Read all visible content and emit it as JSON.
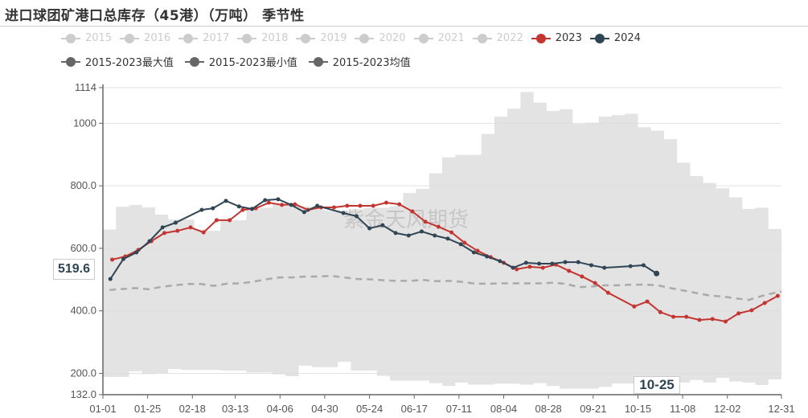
{
  "title": "进口球团矿港口总库存（45港）（万吨） 季节性",
  "colors": {
    "inactive": "#cccccc",
    "y2023": "#c23531",
    "y2024": "#2f4554",
    "stat": "#666666",
    "band": "#e3e3e3",
    "mean": "#aaaaaa"
  },
  "legend": {
    "row1": [
      {
        "label": "2015",
        "active": false
      },
      {
        "label": "2016",
        "active": false
      },
      {
        "label": "2017",
        "active": false
      },
      {
        "label": "2018",
        "active": false
      },
      {
        "label": "2019",
        "active": false
      },
      {
        "label": "2020",
        "active": false
      },
      {
        "label": "2021",
        "active": false
      },
      {
        "label": "2022",
        "active": false
      },
      {
        "label": "2023",
        "active": true
      },
      {
        "label": "2024",
        "active": true
      }
    ],
    "row2": [
      {
        "label": "2015-2023最大值",
        "active": true
      },
      {
        "label": "2015-2023最小值",
        "active": true
      },
      {
        "label": "2015-2023均值",
        "active": true
      }
    ]
  },
  "watermark": "紫金天风期货",
  "axis_pointer": {
    "y_value": "519.6",
    "x_value": "10-25"
  },
  "chart_data": {
    "type": "line",
    "title": "进口球团矿港口总库存（45港）（万吨） 季节性",
    "ylim": [
      132,
      1114
    ],
    "y_ticks": [
      "132.0",
      "200.0",
      "400.0",
      "600.0",
      "800.0",
      "1000",
      "1114"
    ],
    "x_ticks": [
      "01-01",
      "01-25",
      "02-18",
      "03-13",
      "04-06",
      "04-30",
      "05-24",
      "06-17",
      "07-11",
      "08-04",
      "08-28",
      "09-21",
      "10-15",
      "11-08",
      "12-02",
      "12-31"
    ],
    "grid": true,
    "legend_position": "top",
    "series": [
      {
        "name": "2023",
        "points": [
          [
            "01-06",
            564
          ],
          [
            "01-13",
            574
          ],
          [
            "01-20",
            595
          ],
          [
            "01-27",
            623
          ],
          [
            "02-03",
            649
          ],
          [
            "02-10",
            656
          ],
          [
            "02-17",
            667
          ],
          [
            "02-24",
            651
          ],
          [
            "03-03",
            690
          ],
          [
            "03-10",
            690
          ],
          [
            "03-17",
            723
          ],
          [
            "03-24",
            728
          ],
          [
            "03-31",
            746
          ],
          [
            "04-07",
            739
          ],
          [
            "04-14",
            741
          ],
          [
            "04-21",
            723
          ],
          [
            "04-28",
            731
          ],
          [
            "05-05",
            731
          ],
          [
            "05-12",
            736
          ],
          [
            "05-19",
            736
          ],
          [
            "05-26",
            736
          ],
          [
            "06-02",
            746
          ],
          [
            "06-09",
            741
          ],
          [
            "06-16",
            718
          ],
          [
            "06-23",
            685
          ],
          [
            "06-30",
            669
          ],
          [
            "07-07",
            651
          ],
          [
            "07-14",
            618
          ],
          [
            "07-21",
            592
          ],
          [
            "07-28",
            572
          ],
          [
            "08-04",
            554
          ],
          [
            "08-11",
            533
          ],
          [
            "08-18",
            541
          ],
          [
            "08-25",
            538
          ],
          [
            "09-01",
            548
          ],
          [
            "09-08",
            528
          ],
          [
            "09-15",
            510
          ],
          [
            "09-22",
            489
          ],
          [
            "09-29",
            458
          ],
          [
            "10-13",
            414
          ],
          [
            "10-20",
            430
          ],
          [
            "10-27",
            396
          ],
          [
            "11-03",
            381
          ],
          [
            "11-10",
            381
          ],
          [
            "11-17",
            371
          ],
          [
            "11-24",
            374
          ],
          [
            "12-01",
            366
          ],
          [
            "12-08",
            392
          ],
          [
            "12-15",
            402
          ],
          [
            "12-22",
            425
          ],
          [
            "12-29",
            448
          ]
        ]
      },
      {
        "name": "2024",
        "points": [
          [
            "01-05",
            502
          ],
          [
            "01-12",
            566
          ],
          [
            "01-19",
            587
          ],
          [
            "01-26",
            623
          ],
          [
            "02-02",
            667
          ],
          [
            "02-09",
            682
          ],
          [
            "02-23",
            723
          ],
          [
            "03-01",
            728
          ],
          [
            "03-08",
            752
          ],
          [
            "03-15",
            734
          ],
          [
            "03-22",
            726
          ],
          [
            "03-29",
            754
          ],
          [
            "04-05",
            757
          ],
          [
            "04-12",
            739
          ],
          [
            "04-19",
            716
          ],
          [
            "04-26",
            736
          ],
          [
            "05-10",
            713
          ],
          [
            "05-17",
            703
          ],
          [
            "05-24",
            664
          ],
          [
            "05-31",
            674
          ],
          [
            "06-07",
            649
          ],
          [
            "06-14",
            641
          ],
          [
            "06-21",
            654
          ],
          [
            "06-28",
            641
          ],
          [
            "07-05",
            631
          ],
          [
            "07-12",
            613
          ],
          [
            "07-19",
            587
          ],
          [
            "07-26",
            574
          ],
          [
            "08-02",
            559
          ],
          [
            "08-09",
            538
          ],
          [
            "08-16",
            554
          ],
          [
            "08-23",
            551
          ],
          [
            "08-30",
            551
          ],
          [
            "09-06",
            556
          ],
          [
            "09-13",
            556
          ],
          [
            "09-20",
            546
          ],
          [
            "09-27",
            538
          ],
          [
            "10-11",
            543
          ],
          [
            "10-18",
            546
          ],
          [
            "10-25",
            519.6
          ]
        ]
      },
      {
        "name": "2015-2023最大值",
        "dates": [
          "01-01",
          "01-08",
          "01-15",
          "01-22",
          "01-29",
          "02-05",
          "02-12",
          "02-19",
          "02-26",
          "03-05",
          "03-12",
          "03-19",
          "03-26",
          "04-02",
          "04-09",
          "04-16",
          "04-23",
          "04-30",
          "05-07",
          "05-14",
          "05-21",
          "05-28",
          "06-04",
          "06-11",
          "06-18",
          "06-25",
          "07-02",
          "07-09",
          "07-16",
          "07-23",
          "07-30",
          "08-06",
          "08-13",
          "08-20",
          "08-27",
          "09-03",
          "09-10",
          "09-17",
          "09-24",
          "10-01",
          "10-08",
          "10-15",
          "10-22",
          "10-29",
          "11-05",
          "11-12",
          "11-19",
          "11-26",
          "12-03",
          "12-10",
          "12-17",
          "12-24",
          "12-31"
        ],
        "values": [
          660,
          733,
          739,
          731,
          708,
          692,
          692,
          660,
          656,
          690,
          690,
          726,
          730,
          743,
          743,
          734,
          725,
          720,
          720,
          725,
          730,
          730,
          735,
          777,
          790,
          840,
          891,
          899,
          899,
          966,
          1021,
          1047,
          1100,
          1066,
          1039,
          1045,
          998,
          1002,
          1021,
          1026,
          1030,
          987,
          976,
          949,
          874,
          831,
          809,
          792,
          763,
          726,
          730,
          662,
          662
        ]
      },
      {
        "name": "2015-2023最小值",
        "dates": [
          "01-01",
          "01-08",
          "01-15",
          "01-22",
          "01-29",
          "02-05",
          "02-12",
          "02-19",
          "02-26",
          "03-05",
          "03-12",
          "03-19",
          "03-26",
          "04-02",
          "04-09",
          "04-16",
          "04-23",
          "04-30",
          "05-07",
          "05-14",
          "05-21",
          "05-28",
          "06-04",
          "06-11",
          "06-18",
          "06-25",
          "07-02",
          "07-09",
          "07-16",
          "07-23",
          "07-30",
          "08-06",
          "08-13",
          "08-20",
          "08-27",
          "09-03",
          "09-10",
          "09-17",
          "09-24",
          "10-01",
          "10-08",
          "10-15",
          "10-22",
          "10-29",
          "11-05",
          "11-12",
          "11-19",
          "11-26",
          "12-03",
          "12-10",
          "12-17",
          "12-24",
          "12-31"
        ],
        "values": [
          189,
          189,
          207,
          198,
          200,
          214,
          211,
          211,
          211,
          209,
          209,
          203,
          203,
          197,
          191,
          225,
          220,
          220,
          237,
          209,
          209,
          192,
          177,
          177,
          177,
          169,
          160,
          171,
          164,
          164,
          167,
          167,
          164,
          169,
          160,
          151,
          151,
          151,
          157,
          168,
          168,
          183,
          183,
          181,
          171,
          179,
          171,
          186,
          174,
          171,
          163,
          181,
          181
        ]
      },
      {
        "name": "2015-2023均值",
        "dates": [
          "01-01",
          "01-08",
          "01-15",
          "01-22",
          "01-29",
          "02-05",
          "02-12",
          "02-19",
          "02-26",
          "03-05",
          "03-12",
          "03-19",
          "03-26",
          "04-02",
          "04-09",
          "04-16",
          "04-23",
          "04-30",
          "05-07",
          "05-14",
          "05-21",
          "05-28",
          "06-04",
          "06-11",
          "06-18",
          "06-25",
          "07-02",
          "07-09",
          "07-16",
          "07-23",
          "07-30",
          "08-06",
          "08-13",
          "08-20",
          "08-27",
          "09-03",
          "09-10",
          "09-17",
          "09-24",
          "10-01",
          "10-08",
          "10-15",
          "10-22",
          "10-29",
          "11-05",
          "11-12",
          "11-19",
          "11-26",
          "12-03",
          "12-10",
          "12-17",
          "12-24",
          "12-31"
        ],
        "values": [
          467,
          470,
          473,
          469,
          477,
          482,
          486,
          486,
          480,
          487,
          488,
          493,
          501,
          507,
          507,
          510,
          510,
          512,
          507,
          502,
          501,
          498,
          496,
          496,
          499,
          495,
          496,
          493,
          487,
          487,
          488,
          488,
          488,
          488,
          490,
          486,
          476,
          478,
          482,
          482,
          484,
          484,
          482,
          473,
          465,
          457,
          449,
          446,
          440,
          435,
          448,
          458,
          462
        ]
      }
    ]
  }
}
